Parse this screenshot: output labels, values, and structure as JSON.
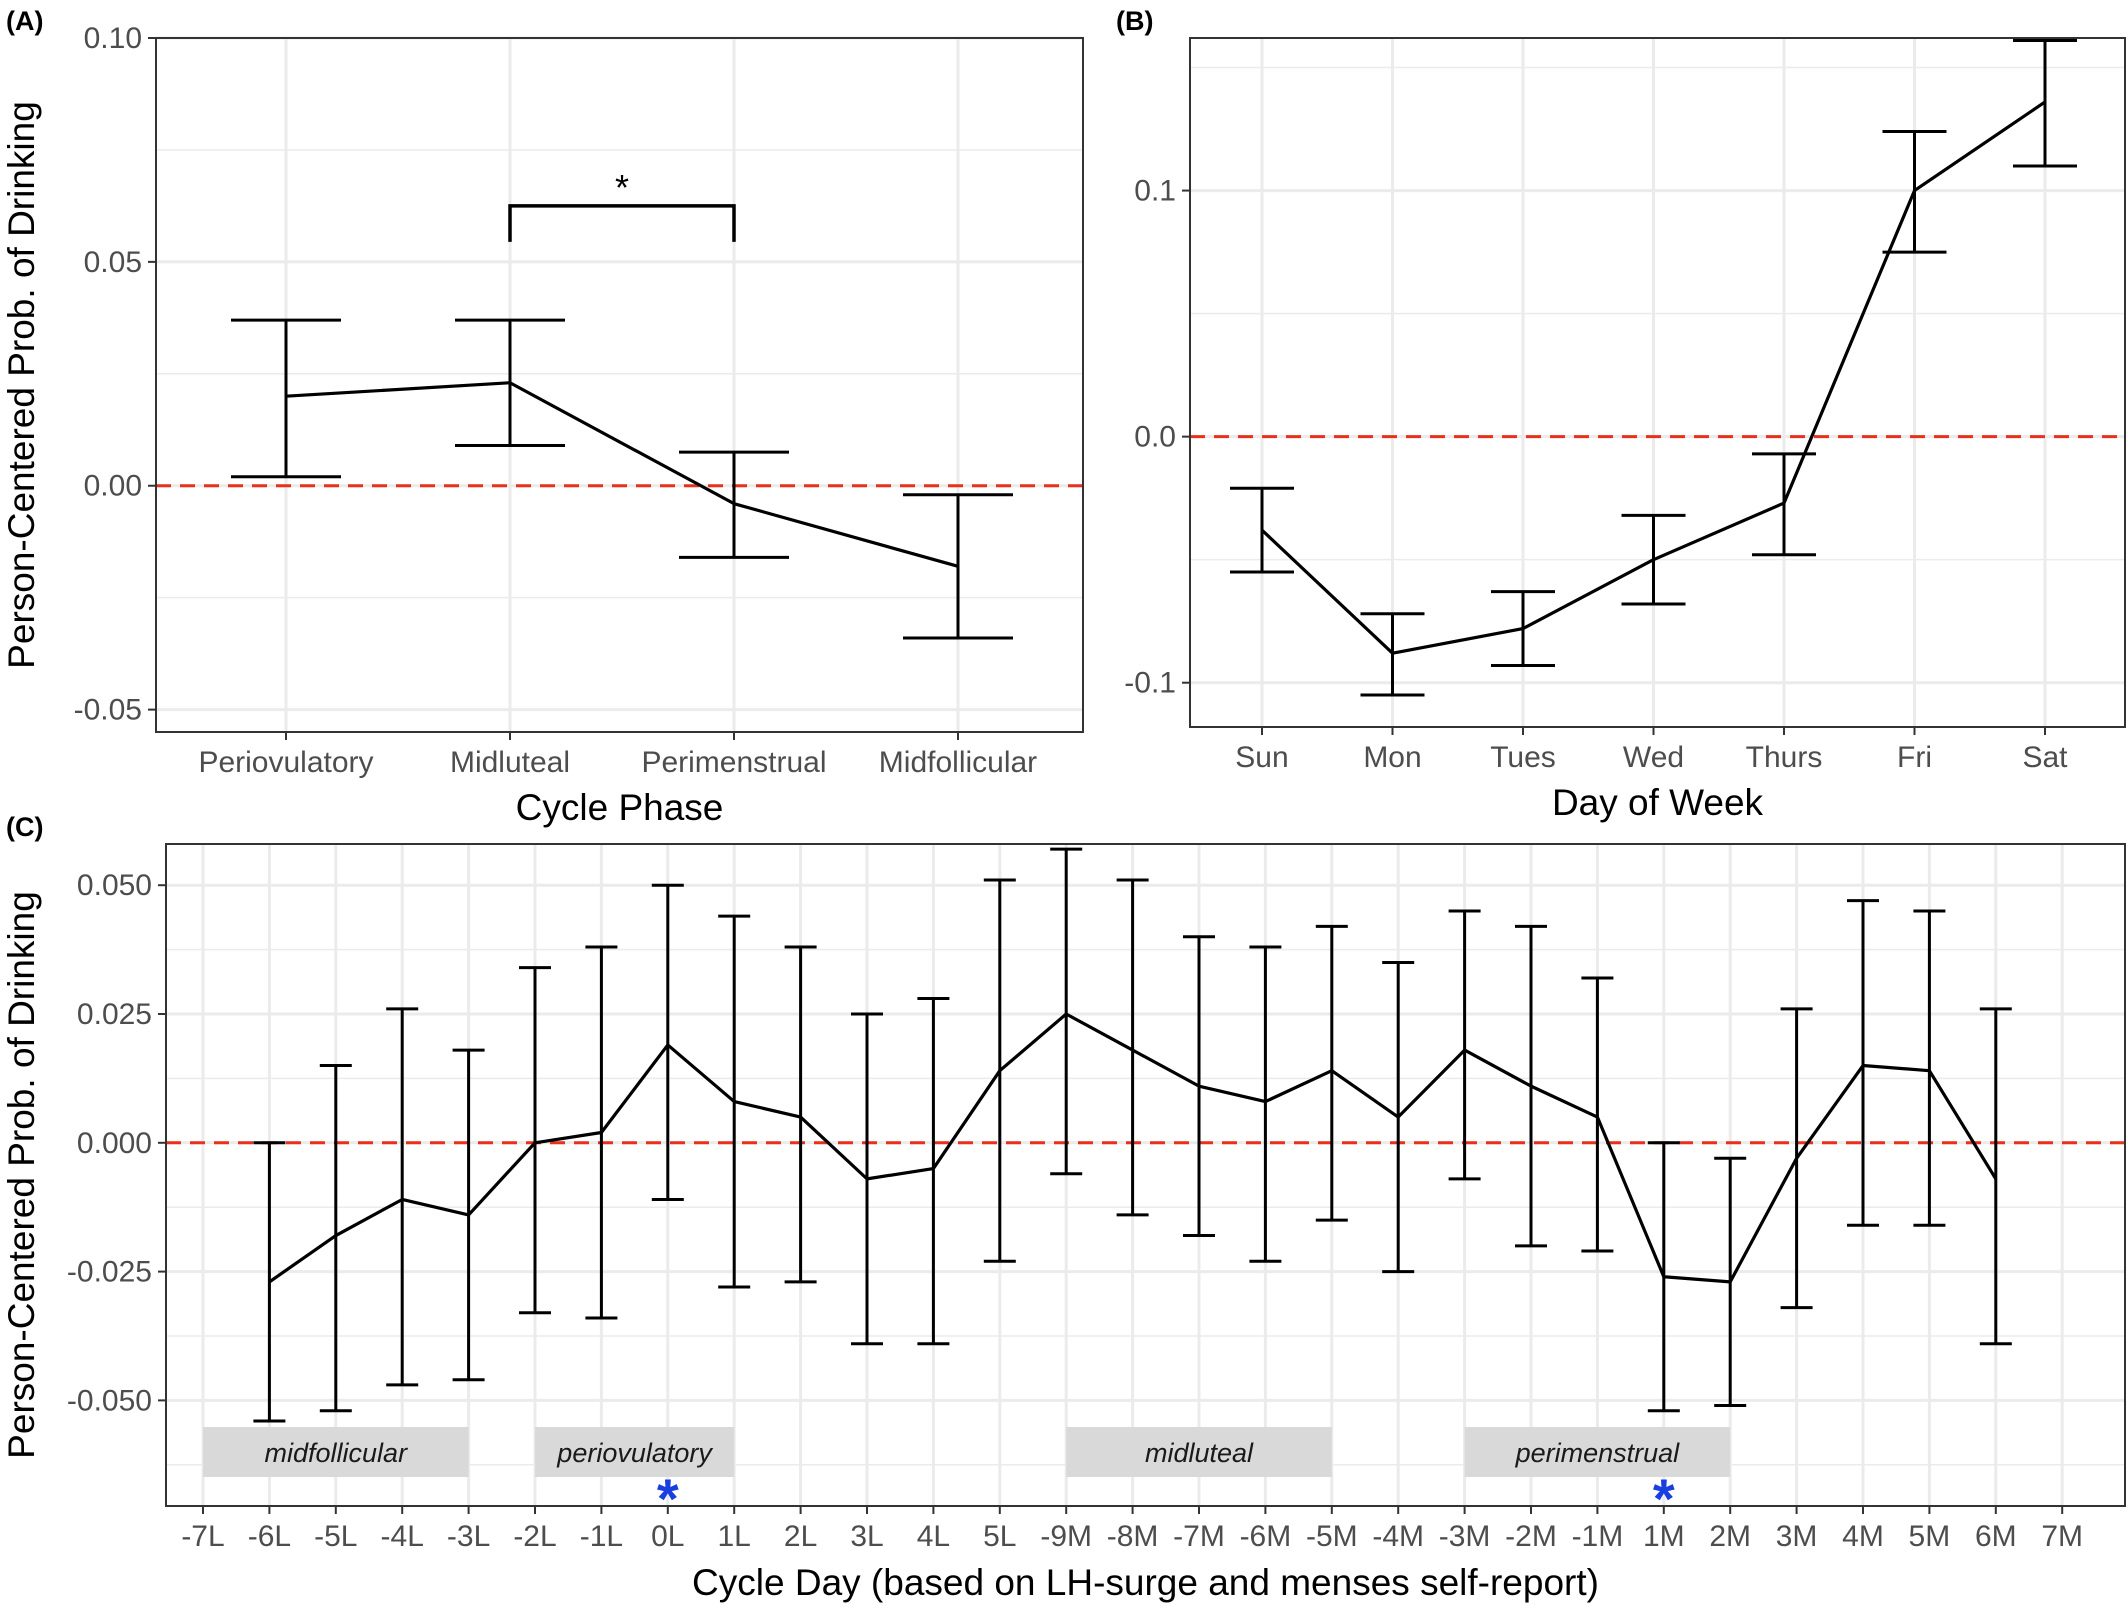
{
  "chart_data": [
    {
      "panel": "(A)",
      "type": "line",
      "categories": [
        "Periovulatory",
        "Midluteal",
        "Perimenstrual",
        "Midfollicular"
      ],
      "values": [
        0.02,
        0.023,
        -0.004,
        -0.018
      ],
      "lower": [
        0.002,
        0.009,
        -0.016,
        -0.034
      ],
      "upper": [
        0.037,
        0.037,
        0.0075,
        -0.002
      ],
      "xlabel": "Cycle Phase",
      "ylabel": "Person-Centered Prob. of Drinking",
      "ylim": [
        -0.055,
        0.1
      ],
      "yticks": [
        "-0.05",
        "0.00",
        "0.05",
        "0.10"
      ],
      "reference_line": 0,
      "annotations": [
        {
          "from": "Midluteal",
          "to": "Perimenstrual",
          "text": "*"
        }
      ],
      "grid": true
    },
    {
      "panel": "(B)",
      "type": "line",
      "categories": [
        "Sun",
        "Mon",
        "Tues",
        "Wed",
        "Thurs",
        "Fri",
        "Sat"
      ],
      "values": [
        -0.038,
        -0.088,
        -0.078,
        -0.05,
        -0.027,
        0.1,
        0.136
      ],
      "lower": [
        -0.055,
        -0.105,
        -0.093,
        -0.068,
        -0.048,
        0.075,
        0.11
      ],
      "upper": [
        -0.021,
        -0.072,
        -0.063,
        -0.032,
        -0.007,
        0.124,
        0.161
      ],
      "xlabel": "Day of Week",
      "ylabel": "",
      "ylim": [
        -0.118,
        0.162
      ],
      "yticks": [
        "-0.1",
        "0.0",
        "0.1"
      ],
      "reference_line": 0,
      "grid": true
    },
    {
      "panel": "(C)",
      "type": "line",
      "categories": [
        "-7L",
        "-6L",
        "-5L",
        "-4L",
        "-3L",
        "-2L",
        "-1L",
        "0L",
        "1L",
        "2L",
        "3L",
        "4L",
        "5L",
        "-9M",
        "-8M",
        "-7M",
        "-6M",
        "-5M",
        "-4M",
        "-3M",
        "-2M",
        "-1M",
        "1M",
        "2M",
        "3M",
        "4M",
        "5M",
        "6M",
        "7M"
      ],
      "values": [
        null,
        -0.027,
        -0.018,
        -0.011,
        -0.014,
        0.0,
        0.002,
        0.019,
        0.008,
        0.005,
        -0.007,
        -0.005,
        0.014,
        0.025,
        0.018,
        0.011,
        0.008,
        0.014,
        0.005,
        0.018,
        0.011,
        0.005,
        -0.026,
        -0.027,
        -0.003,
        0.015,
        0.014,
        -0.007,
        null
      ],
      "lower": [
        null,
        -0.054,
        -0.052,
        -0.047,
        -0.046,
        -0.033,
        -0.034,
        -0.011,
        -0.028,
        -0.027,
        -0.039,
        -0.039,
        -0.023,
        -0.006,
        -0.014,
        -0.018,
        -0.023,
        -0.015,
        -0.025,
        -0.007,
        -0.02,
        -0.021,
        -0.052,
        -0.051,
        -0.032,
        -0.016,
        -0.016,
        -0.039,
        null
      ],
      "upper": [
        null,
        0.0,
        0.015,
        0.026,
        0.018,
        0.034,
        0.038,
        0.05,
        0.044,
        0.038,
        0.025,
        0.028,
        0.051,
        0.057,
        0.051,
        0.04,
        0.038,
        0.042,
        0.035,
        0.045,
        0.042,
        0.032,
        0.0,
        -0.003,
        0.026,
        0.047,
        0.045,
        0.026,
        null
      ],
      "xlabel": "Cycle Day (based on LH-surge and menses self-report)",
      "ylabel": "Person-Centered Prob. of Drinking",
      "ylim": [
        -0.0705,
        0.058
      ],
      "yticks": [
        "-0.050",
        "-0.025",
        "0.000",
        "0.025",
        "0.050"
      ],
      "reference_line": 0,
      "phase_bands": [
        {
          "label": "midfollicular",
          "from": "-7L",
          "to": "-3L"
        },
        {
          "label": "periovulatory",
          "from": "-2L",
          "to": "1L"
        },
        {
          "label": "midluteal",
          "from": "-9M",
          "to": "-5M"
        },
        {
          "label": "perimenstrual",
          "from": "-3M",
          "to": "2M"
        }
      ],
      "markers": [
        {
          "at": "0L",
          "text": "*",
          "color": "#1a3fe0"
        },
        {
          "at": "1M",
          "text": "*",
          "color": "#1a3fe0"
        }
      ],
      "grid": true
    }
  ],
  "colors": {
    "line": "#000000",
    "reference": "#e8301c",
    "grid": "#ebebeb",
    "band": "#d9d9d9",
    "marker": "#1a3fe0"
  }
}
